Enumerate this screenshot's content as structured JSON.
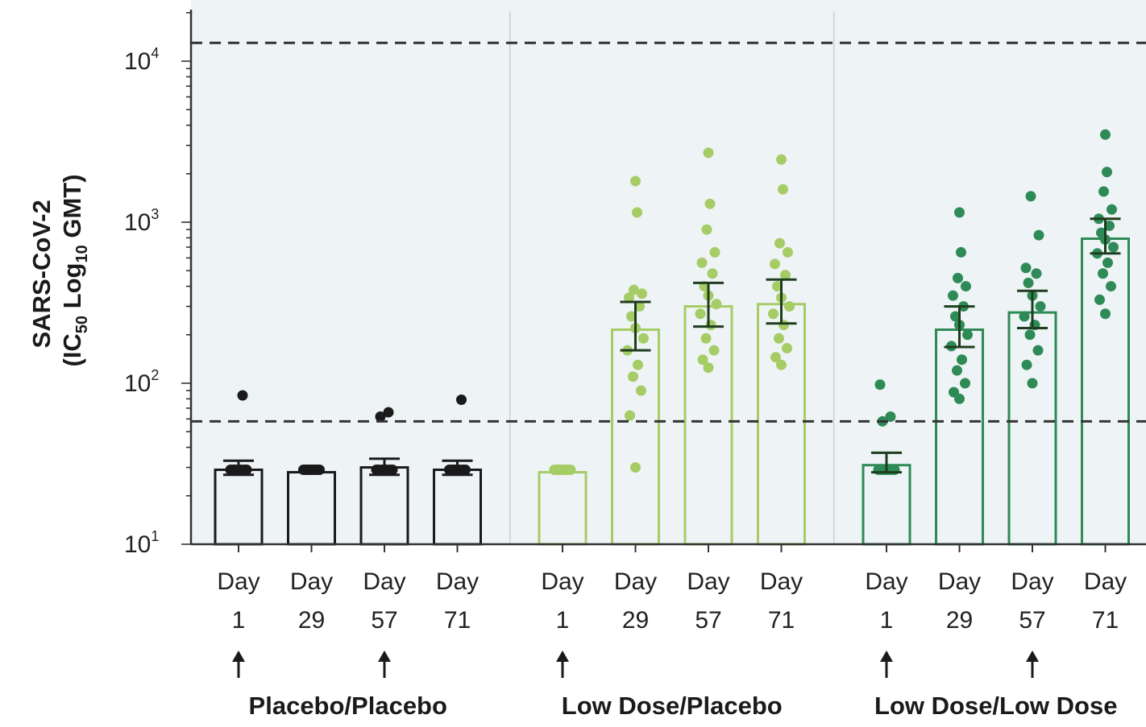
{
  "chart_data": {
    "type": "bar",
    "yscale": "log",
    "ylim": [
      10,
      20000
    ],
    "ylabel": {
      "line1": "SARS-CoV-2",
      "line2_prefix": "(IC",
      "line2_sub1": "50",
      "line2_mid": " Log",
      "line2_sub2": "10",
      "line2_suffix": " GMT)"
    },
    "yticks": [
      {
        "value": 10,
        "base": "10",
        "exp": "1"
      },
      {
        "value": 100,
        "base": "10",
        "exp": "2"
      },
      {
        "value": 1000,
        "base": "10",
        "exp": "3"
      },
      {
        "value": 10000,
        "base": "10",
        "exp": "4"
      }
    ],
    "reference_lines": [
      13000,
      58
    ],
    "background_color": "#eef3f5",
    "groups": [
      {
        "name": "Placebo/Placebo",
        "color": "#1a1a1a",
        "categories": [
          {
            "line1": "Day",
            "line2": "1",
            "dose": true,
            "gmt": 29,
            "ci": [
              27,
              33
            ],
            "points": [
              29,
              29,
              29,
              29,
              29,
              29,
              29,
              29,
              29,
              84
            ]
          },
          {
            "line1": "Day",
            "line2": "29",
            "dose": false,
            "gmt": 28,
            "ci": null,
            "points": [
              29,
              29,
              29,
              29,
              29,
              29,
              29,
              29,
              29,
              29
            ]
          },
          {
            "line1": "Day",
            "line2": "57",
            "dose": true,
            "gmt": 30,
            "ci": [
              27,
              34
            ],
            "points": [
              29,
              29,
              29,
              29,
              29,
              29,
              29,
              29,
              62,
              66
            ]
          },
          {
            "line1": "Day",
            "line2": "71",
            "dose": false,
            "gmt": 29,
            "ci": [
              27,
              33
            ],
            "points": [
              29,
              29,
              29,
              29,
              29,
              29,
              29,
              29,
              29,
              79
            ]
          }
        ]
      },
      {
        "name": "Low Dose/Placebo",
        "color": "#a6cc66",
        "categories": [
          {
            "line1": "Day",
            "line2": "1",
            "dose": true,
            "gmt": 28,
            "ci": null,
            "points": [
              29,
              29,
              29,
              29,
              29,
              29,
              29,
              29,
              29,
              29
            ]
          },
          {
            "line1": "Day",
            "line2": "29",
            "dose": false,
            "gmt": 215,
            "ci": [
              160,
              320
            ],
            "points": [
              30,
              63,
              90,
              110,
              130,
              160,
              190,
              220,
              260,
              300,
              340,
              360,
              380,
              1150,
              1800
            ]
          },
          {
            "line1": "Day",
            "line2": "57",
            "dose": false,
            "gmt": 300,
            "ci": [
              225,
              420
            ],
            "points": [
              125,
              140,
              160,
              190,
              230,
              270,
              310,
              350,
              400,
              480,
              560,
              650,
              900,
              1300,
              2700
            ]
          },
          {
            "line1": "Day",
            "line2": "71",
            "dose": false,
            "gmt": 310,
            "ci": [
              235,
              440
            ],
            "points": [
              130,
              145,
              165,
              190,
              230,
              270,
              300,
              340,
              400,
              470,
              550,
              650,
              740,
              1600,
              2450
            ]
          }
        ]
      },
      {
        "name": "Low Dose/Low Dose",
        "color": "#2e8a57",
        "categories": [
          {
            "line1": "Day",
            "line2": "1",
            "dose": true,
            "gmt": 31,
            "ci": [
              28,
              37
            ],
            "points": [
              29,
              29,
              29,
              29,
              29,
              29,
              29,
              29,
              58,
              62,
              98
            ]
          },
          {
            "line1": "Day",
            "line2": "29",
            "dose": false,
            "gmt": 215,
            "ci": [
              168,
              300
            ],
            "points": [
              80,
              88,
              100,
              120,
              140,
              170,
              200,
              230,
              260,
              300,
              350,
              400,
              450,
              650,
              1150
            ]
          },
          {
            "line1": "Day",
            "line2": "57",
            "dose": true,
            "gmt": 275,
            "ci": [
              220,
              375
            ],
            "points": [
              100,
              130,
              160,
              200,
              230,
              260,
              300,
              350,
              420,
              480,
              520,
              830,
              1450
            ]
          },
          {
            "line1": "Day",
            "line2": "71",
            "dose": false,
            "gmt": 790,
            "ci": [
              640,
              1050
            ],
            "points": [
              270,
              330,
              400,
              480,
              560,
              640,
              700,
              780,
              860,
              950,
              1050,
              1200,
              1550,
              2050,
              3500
            ]
          }
        ]
      }
    ]
  }
}
